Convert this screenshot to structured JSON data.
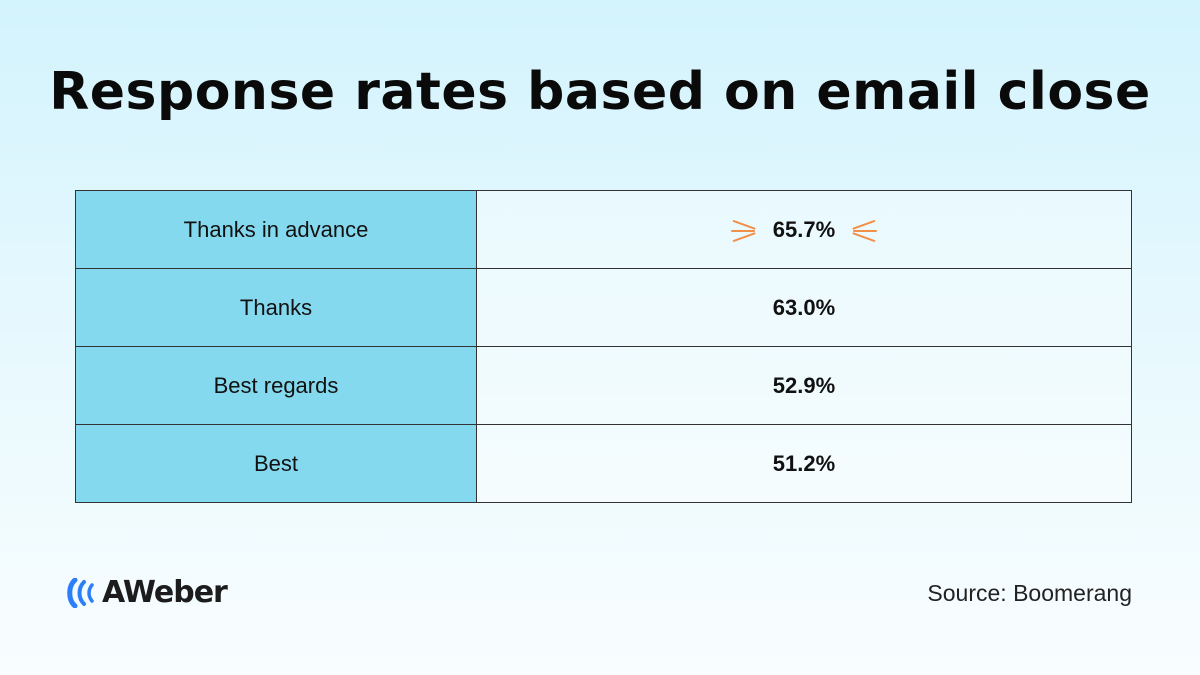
{
  "title": "Response rates based on email close",
  "chart_data": {
    "type": "table",
    "title": "Response rates based on email close",
    "rows": [
      {
        "label": "Thanks in advance",
        "value": "65.7%",
        "highlight": true
      },
      {
        "label": "Thanks",
        "value": "63.0%"
      },
      {
        "label": "Best regards",
        "value": "52.9%"
      },
      {
        "label": "Best",
        "value": "51.2%"
      }
    ]
  },
  "colors": {
    "label_cell": "#85d9ee",
    "highlight_burst": "#f2904a",
    "logo_blue": "#2d7ff9"
  },
  "logo": {
    "text": "AWeber"
  },
  "source": "Source: Boomerang"
}
